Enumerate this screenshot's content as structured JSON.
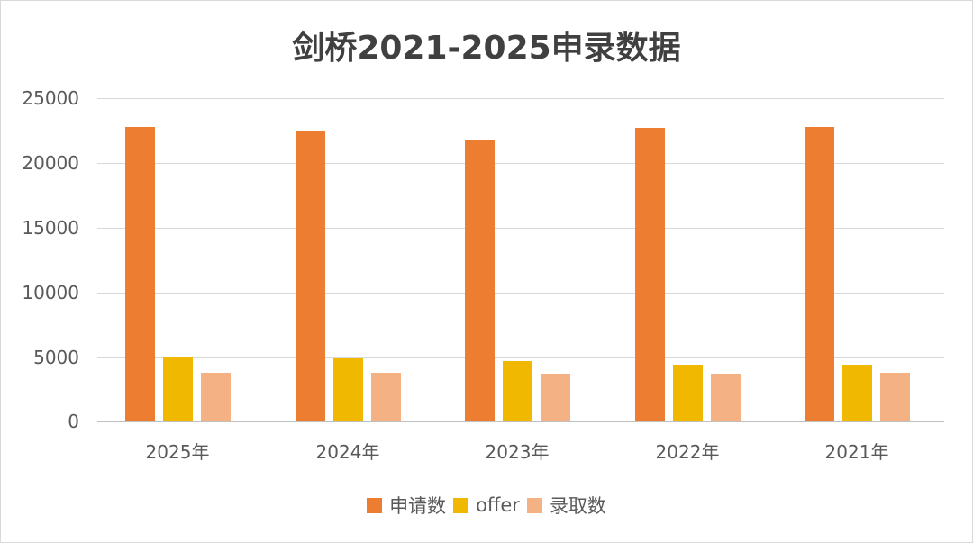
{
  "chart_data": {
    "type": "bar",
    "title": "剑桥2021-2025申录数据",
    "xlabel": "",
    "ylabel": "",
    "ylim": [
      0,
      25000
    ],
    "yticks": [
      0,
      5000,
      10000,
      15000,
      20000,
      25000
    ],
    "grid": true,
    "legend_position": "bottom",
    "categories": [
      "2025年",
      "2024年",
      "2023年",
      "2022年",
      "2021年"
    ],
    "series": [
      {
        "name": "申请数",
        "color": "#ED7D31",
        "values": [
          22770,
          22490,
          21730,
          22700,
          22770
        ]
      },
      {
        "name": "offer",
        "color": "#F0B800",
        "values": [
          4950,
          4800,
          4600,
          4320,
          4320
        ]
      },
      {
        "name": "录取数",
        "color": "#F4B183",
        "values": [
          3690,
          3690,
          3620,
          3620,
          3690
        ]
      }
    ]
  },
  "title": "剑桥2021-2025申录数据",
  "yaxis": {
    "labels": [
      "25000",
      "20000",
      "15000",
      "10000",
      "5000",
      "0"
    ]
  },
  "xaxis": {
    "labels": [
      "2025年",
      "2024年",
      "2023年",
      "2022年",
      "2021年"
    ]
  },
  "legend": {
    "items": [
      "申请数",
      "offer",
      "录取数"
    ]
  }
}
